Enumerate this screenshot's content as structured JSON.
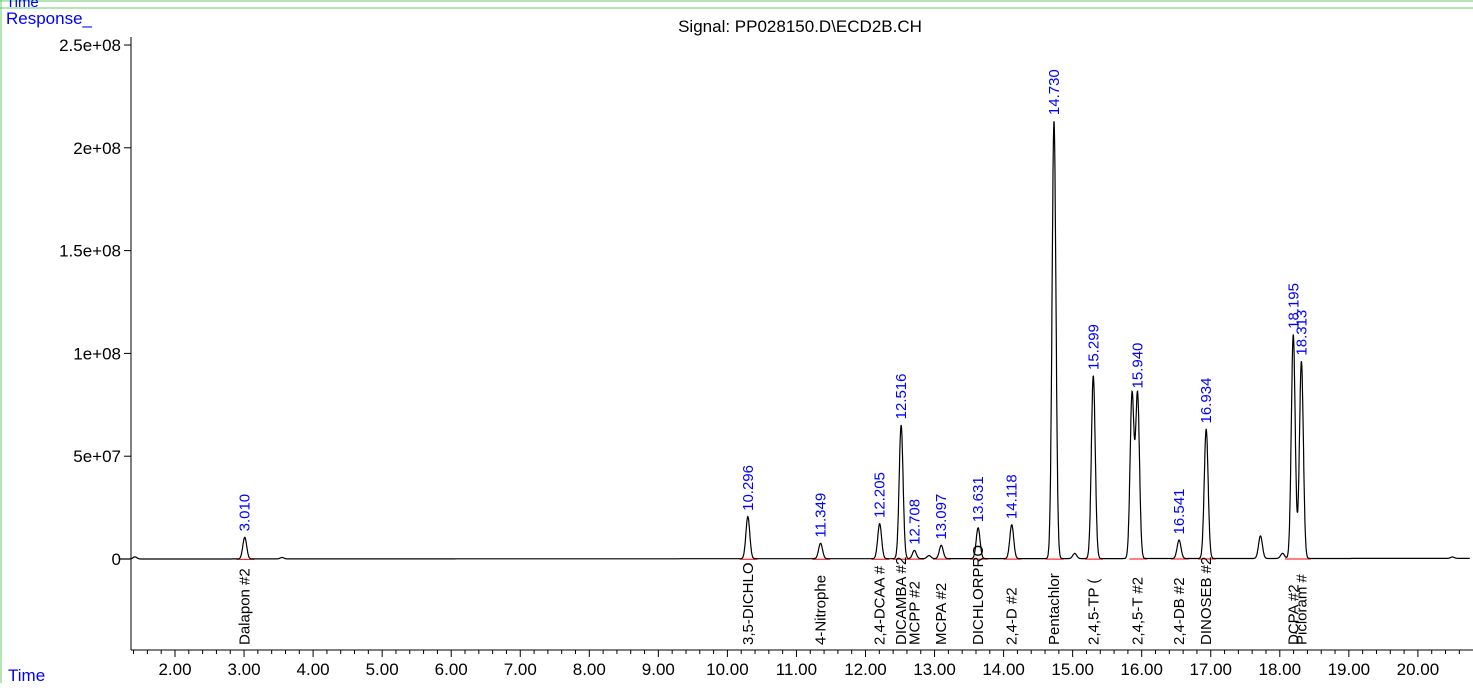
{
  "header": {
    "top_label": "Time",
    "response_label": "Response_",
    "signal_title": "Signal: PP028150.D\\ECD2B.CH",
    "time_label": "Time"
  },
  "colors": {
    "frame": "#66cc66",
    "axis_label": "#0000ff",
    "trace": "#000000",
    "baseline": "#ff0000",
    "peak_label": "#0000ff",
    "compound_label": "#000000"
  },
  "chart_data": {
    "type": "line",
    "title": "Signal: PP028150.D\\ECD2B.CH",
    "xlabel": "Time",
    "ylabel": "Response_",
    "xlim": [
      1.0,
      21.0
    ],
    "ylim": [
      -42000000,
      255000000
    ],
    "x_ticks": [
      "2.00",
      "3.00",
      "4.00",
      "5.00",
      "6.00",
      "7.00",
      "8.00",
      "9.00",
      "10.00",
      "11.00",
      "12.00",
      "13.00",
      "14.00",
      "15.00",
      "16.00",
      "17.00",
      "18.00",
      "19.00",
      "20.00"
    ],
    "y_ticks": [
      "0",
      "5e+07",
      "1e+08",
      "1.5e+08",
      "2e+08",
      "2.5e+08"
    ],
    "peaks": [
      {
        "rt": "3.010",
        "height": 10500000,
        "compound": "Dalapon #2"
      },
      {
        "rt": "10.296",
        "height": 20500000,
        "compound": "3,5-DICHLO"
      },
      {
        "rt": "11.349",
        "height": 7500000,
        "compound": "4-Nitrophe"
      },
      {
        "rt": "12.205",
        "height": 17000000,
        "compound": "2,4-DCAA #"
      },
      {
        "rt": "12.516",
        "height": 65000000,
        "compound": "DICAMBA #2"
      },
      {
        "rt": "12.708",
        "height": 4000000,
        "compound": "MCPP #2"
      },
      {
        "rt": "13.097",
        "height": 6500000,
        "compound": "MCPA #2"
      },
      {
        "rt": "13.631",
        "height": 15000000,
        "compound": "DICHLORPRO"
      },
      {
        "rt": "14.118",
        "height": 16500000,
        "compound": "2,4-D #2"
      },
      {
        "rt": "14.730",
        "height": 213000000,
        "compound": "Pentachlor"
      },
      {
        "rt": "15.299",
        "height": 89000000,
        "compound": "2,4,5-TP ("
      },
      {
        "rt": "15.940",
        "height": 80000000,
        "compound": "2,4,5-T #2"
      },
      {
        "rt": "16.541",
        "height": 9000000,
        "compound": "2,4-DB #2"
      },
      {
        "rt": "16.934",
        "height": 63000000,
        "compound": "DINOSEB #2"
      },
      {
        "rt": "18.195",
        "height": 109000000,
        "compound": "DCPA #2"
      },
      {
        "rt": "18.313",
        "height": 96000000,
        "compound": "Picloram #"
      }
    ],
    "minor_peaks": [
      {
        "x": 1.42,
        "height": 1000000
      },
      {
        "x": 3.55,
        "height": 700000
      },
      {
        "x": 12.92,
        "height": 1500000
      },
      {
        "x": 15.03,
        "height": 2500000
      },
      {
        "x": 15.86,
        "height": 80000000
      },
      {
        "x": 17.72,
        "height": 11000000
      },
      {
        "x": 18.04,
        "height": 2500000
      },
      {
        "x": 20.5,
        "height": 700000
      }
    ]
  }
}
